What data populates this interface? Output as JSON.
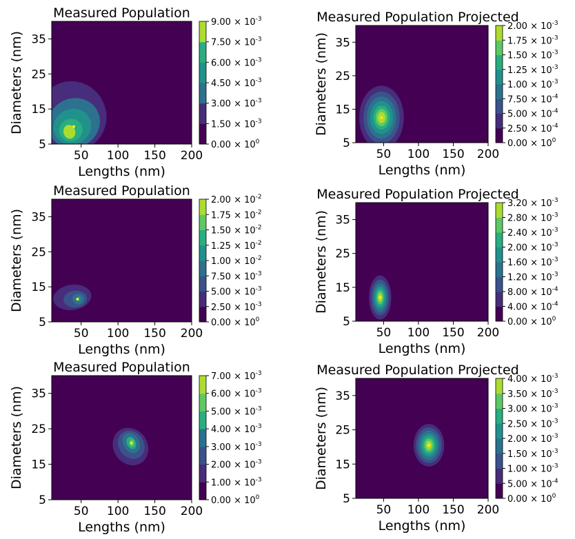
{
  "chart_data": [
    {
      "type": "contour",
      "variant": "measured",
      "title": "Measured Population",
      "xlabel": "Lengths (nm)",
      "ylabel": "Diameters (nm)",
      "xlim": [
        10,
        200
      ],
      "ylim": [
        5,
        40
      ],
      "xticks": [
        50,
        100,
        150,
        200
      ],
      "yticks": [
        5,
        15,
        25,
        35
      ],
      "colorbar_levels": [
        "0.00",
        "1.50",
        "3.00",
        "4.50",
        "6.00",
        "7.50",
        "9.00"
      ],
      "colorbar_exps": [
        "0",
        "-3",
        "-3",
        "-3",
        "-3",
        "-3",
        "-3"
      ],
      "peak": {
        "length": 40,
        "diameter": 10
      }
    },
    {
      "type": "contour",
      "variant": "projected",
      "title": "Measured Population Projected",
      "xlabel": "Lengths (nm)",
      "ylabel": "Diameters (nm)",
      "xlim": [
        10,
        200
      ],
      "ylim": [
        5,
        40
      ],
      "xticks": [
        50,
        100,
        150,
        200
      ],
      "yticks": [
        5,
        15,
        25,
        35
      ],
      "colorbar_levels": [
        "0.00",
        "2.50",
        "5.00",
        "7.50",
        "1.00",
        "1.25",
        "1.50",
        "1.75",
        "2.00"
      ],
      "colorbar_exps": [
        "0",
        "-4",
        "-4",
        "-4",
        "-3",
        "-3",
        "-3",
        "-3",
        "-3"
      ],
      "peak": {
        "length": 47,
        "diameter": 12.5
      }
    },
    {
      "type": "contour",
      "variant": "measured",
      "title": "Measured Population",
      "xlabel": "Lengths (nm)",
      "ylabel": "Diameters (nm)",
      "xlim": [
        10,
        200
      ],
      "ylim": [
        5,
        40
      ],
      "xticks": [
        50,
        100,
        150,
        200
      ],
      "yticks": [
        5,
        15,
        25,
        35
      ],
      "colorbar_levels": [
        "0.00",
        "2.50",
        "5.00",
        "7.50",
        "1.00",
        "1.25",
        "1.50",
        "1.75",
        "2.00"
      ],
      "colorbar_exps": [
        "0",
        "-3",
        "-3",
        "-3",
        "-2",
        "-2",
        "-2",
        "-2",
        "-2"
      ],
      "peak": {
        "length": 45,
        "diameter": 11.5
      }
    },
    {
      "type": "contour",
      "variant": "projected",
      "title": "Measured Population Projected",
      "xlabel": "Lengths (nm)",
      "ylabel": "Diameters (nm)",
      "xlim": [
        10,
        200
      ],
      "ylim": [
        5,
        40
      ],
      "xticks": [
        50,
        100,
        150,
        200
      ],
      "yticks": [
        5,
        15,
        25,
        35
      ],
      "colorbar_levels": [
        "0.00",
        "4.00",
        "8.00",
        "1.20",
        "1.60",
        "2.00",
        "2.40",
        "2.80",
        "3.20"
      ],
      "colorbar_exps": [
        "0",
        "-4",
        "-4",
        "-3",
        "-3",
        "-3",
        "-3",
        "-3",
        "-3"
      ],
      "peak": {
        "length": 45,
        "diameter": 12
      }
    },
    {
      "type": "contour",
      "variant": "measured",
      "title": "Measured Population",
      "xlabel": "Lengths (nm)",
      "ylabel": "Diameters (nm)",
      "xlim": [
        10,
        200
      ],
      "ylim": [
        5,
        40
      ],
      "xticks": [
        50,
        100,
        150,
        200
      ],
      "yticks": [
        5,
        15,
        25,
        35
      ],
      "colorbar_levels": [
        "0.00",
        "1.00",
        "2.00",
        "3.00",
        "4.00",
        "5.00",
        "6.00",
        "7.00"
      ],
      "colorbar_exps": [
        "0",
        "-3",
        "-3",
        "-3",
        "-3",
        "-3",
        "-3",
        "-3"
      ],
      "peak": {
        "length": 118,
        "diameter": 21
      }
    },
    {
      "type": "contour",
      "variant": "projected",
      "title": "Measured Population Projected",
      "xlabel": "Lengths (nm)",
      "ylabel": "Diameters (nm)",
      "xlim": [
        10,
        200
      ],
      "ylim": [
        5,
        40
      ],
      "xticks": [
        50,
        100,
        150,
        200
      ],
      "yticks": [
        5,
        15,
        25,
        35
      ],
      "colorbar_levels": [
        "0.00",
        "5.00",
        "1.00",
        "1.50",
        "2.00",
        "2.50",
        "3.00",
        "3.50",
        "4.00"
      ],
      "colorbar_exps": [
        "0",
        "-4",
        "-3",
        "-3",
        "-3",
        "-3",
        "-3",
        "-3",
        "-3"
      ],
      "peak": {
        "length": 115,
        "diameter": 20.5
      }
    }
  ]
}
